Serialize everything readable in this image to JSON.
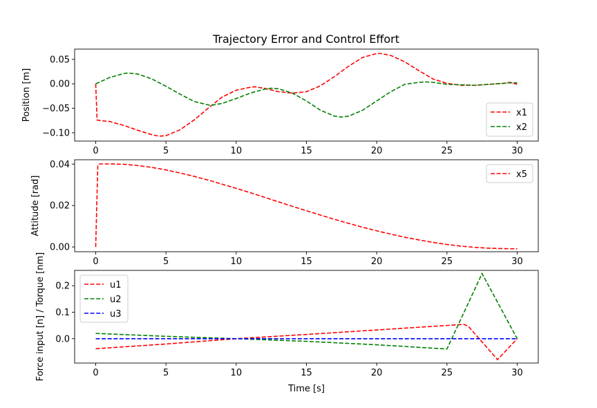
{
  "figure_title": "Trajectory Error and Control Effort",
  "chart_data": [
    {
      "type": "line",
      "title": "Trajectory Error and Control Effort",
      "xlabel": "",
      "ylabel": "Position [m]",
      "xlim": [
        -1.5,
        31.5
      ],
      "ylim": [
        -0.117,
        0.071
      ],
      "xticks": [
        "0",
        "5",
        "10",
        "15",
        "20",
        "25",
        "30"
      ],
      "yticks": [
        "−0.10",
        "−0.05",
        "0.00",
        "0.05"
      ],
      "ytick_values": [
        -0.1,
        -0.05,
        0.0,
        0.05
      ],
      "grid": false,
      "legend": "lower-right",
      "series": [
        {
          "name": "x1",
          "color": "#ff0000",
          "dash": "dashed",
          "x": [
            0,
            0.1,
            0.3,
            1,
            2,
            3,
            4,
            4.5,
            5,
            6,
            7,
            8,
            9,
            10,
            11,
            11.3,
            12,
            13,
            14,
            15,
            16,
            17,
            18,
            19,
            20,
            20.3,
            21,
            22,
            23,
            24,
            25,
            26,
            27,
            28,
            29,
            29.5,
            30
          ],
          "y": [
            0,
            -0.074,
            -0.075,
            -0.077,
            -0.085,
            -0.095,
            -0.104,
            -0.107,
            -0.106,
            -0.094,
            -0.074,
            -0.05,
            -0.027,
            -0.013,
            -0.007,
            -0.006,
            -0.009,
            -0.016,
            -0.019,
            -0.016,
            -0.004,
            0.015,
            0.036,
            0.054,
            0.062,
            0.062,
            0.058,
            0.045,
            0.027,
            0.01,
            0.001,
            -0.003,
            -0.003,
            -0.001,
            0.001,
            0.003,
            -0.001
          ]
        },
        {
          "name": "x2",
          "color": "#008000",
          "dash": "dashed",
          "x": [
            0,
            1,
            2,
            2.3,
            3,
            4,
            5,
            6,
            7,
            8,
            8.2,
            9,
            10,
            11,
            12,
            12.5,
            13,
            14,
            15,
            16,
            17,
            17.5,
            18,
            19,
            20,
            21,
            22,
            23,
            23.5,
            24,
            25,
            26,
            27,
            28,
            29,
            29.5,
            30
          ],
          "y": [
            0,
            0.013,
            0.021,
            0.022,
            0.02,
            0.01,
            -0.005,
            -0.021,
            -0.036,
            -0.043,
            -0.044,
            -0.04,
            -0.03,
            -0.019,
            -0.011,
            -0.009,
            -0.01,
            -0.019,
            -0.035,
            -0.054,
            -0.066,
            -0.068,
            -0.066,
            -0.054,
            -0.035,
            -0.016,
            -0.001,
            0.003,
            0.004,
            0.003,
            -0.001,
            -0.002,
            -0.003,
            -0.001,
            0.001,
            0.002,
            0.002
          ]
        }
      ]
    },
    {
      "type": "line",
      "xlabel": "",
      "ylabel": "Attitude [rad]",
      "xlim": [
        -1.5,
        31.5
      ],
      "ylim": [
        -0.0023,
        0.0421
      ],
      "xticks": [
        "0",
        "5",
        "10",
        "15",
        "20",
        "25",
        "30"
      ],
      "yticks": [
        "0.00",
        "0.02",
        "0.04"
      ],
      "ytick_values": [
        0.0,
        0.02,
        0.04
      ],
      "grid": false,
      "legend": "upper-right",
      "series": [
        {
          "name": "x5",
          "color": "#ff0000",
          "dash": "dashed",
          "x": [
            0,
            0.15,
            0.3,
            1,
            2,
            3,
            4,
            5,
            6,
            7,
            8,
            9,
            10,
            11,
            12,
            13,
            14,
            15,
            16,
            17,
            18,
            19,
            20,
            21,
            22,
            23,
            24,
            25,
            26,
            27,
            28,
            29,
            30
          ],
          "y": [
            0.0,
            0.0395,
            0.0401,
            0.0401,
            0.0399,
            0.0393,
            0.0384,
            0.0372,
            0.0357,
            0.0341,
            0.0323,
            0.0303,
            0.0283,
            0.0262,
            0.024,
            0.0218,
            0.0196,
            0.0175,
            0.0154,
            0.0133,
            0.0114,
            0.0095,
            0.0078,
            0.0062,
            0.0047,
            0.0034,
            0.0022,
            0.0012,
            0.0004,
            -0.0002,
            -0.0006,
            -0.0008,
            -0.0009
          ]
        }
      ]
    },
    {
      "type": "line",
      "xlabel": "Time [s]",
      "ylabel": "Force input [n] / Torque [nm]",
      "xlim": [
        -1.5,
        31.5
      ],
      "ylim": [
        -0.092,
        0.258
      ],
      "xticks": [
        "0",
        "5",
        "10",
        "15",
        "20",
        "25",
        "30"
      ],
      "yticks": [
        "0.0",
        "0.1",
        "0.2"
      ],
      "ytick_values": [
        0.0,
        0.1,
        0.2
      ],
      "grid": false,
      "legend": "upper-left",
      "series": [
        {
          "name": "u1",
          "color": "#ff0000",
          "dash": "dashed",
          "x": [
            0,
            5,
            10,
            15,
            20,
            25,
            26.2,
            26.5,
            28.6,
            30
          ],
          "y": [
            -0.038,
            -0.02,
            0.0,
            0.016,
            0.033,
            0.05,
            0.054,
            0.048,
            -0.079,
            0.0
          ]
        },
        {
          "name": "u2",
          "color": "#008000",
          "dash": "dashed",
          "x": [
            0,
            5,
            10,
            15,
            20,
            25,
            27.5,
            30
          ],
          "y": [
            0.02,
            0.009,
            0.0,
            -0.01,
            -0.023,
            -0.039,
            0.246,
            0.0
          ]
        },
        {
          "name": "u3",
          "color": "#0000ff",
          "dash": "dashed",
          "x": [
            0,
            30
          ],
          "y": [
            0.0,
            0.0
          ]
        }
      ]
    }
  ]
}
